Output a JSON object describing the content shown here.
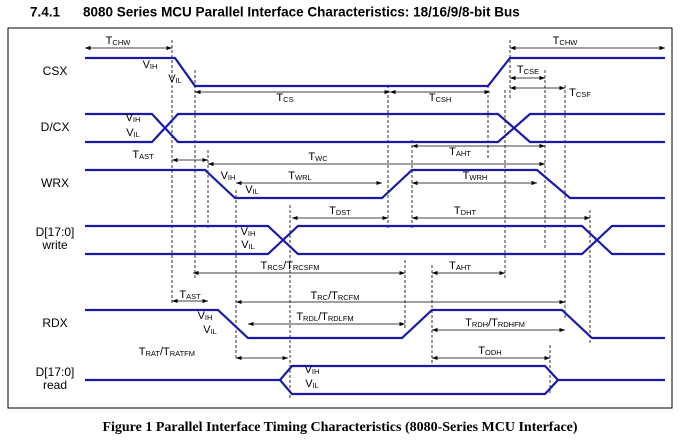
{
  "header": {
    "number": "7.4.1",
    "title": "8080 Series MCU Parallel Interface Characteristics: 18/16/9/8-bit Bus"
  },
  "signals": [
    {
      "lines": [
        "CSX"
      ]
    },
    {
      "lines": [
        "D/CX"
      ]
    },
    {
      "lines": [
        "WRX"
      ]
    },
    {
      "lines": [
        "D[17:0]",
        "write"
      ]
    },
    {
      "lines": [
        "RDX"
      ]
    },
    {
      "lines": [
        "D[17:0]",
        "read"
      ]
    }
  ],
  "timings": [
    {
      "parts": [
        {
          "text": "T"
        },
        {
          "sub": "CHW"
        }
      ]
    },
    {
      "parts": [
        {
          "text": "T"
        },
        {
          "sub": "CHW"
        }
      ]
    },
    {
      "parts": [
        {
          "text": "T"
        },
        {
          "sub": "CS"
        }
      ]
    },
    {
      "parts": [
        {
          "text": "T"
        },
        {
          "sub": "CSH"
        }
      ]
    },
    {
      "parts": [
        {
          "text": "T"
        },
        {
          "sub": "CSE"
        }
      ]
    },
    {
      "parts": [
        {
          "text": "T"
        },
        {
          "sub": "CSF"
        }
      ]
    },
    {
      "parts": [
        {
          "text": "T"
        },
        {
          "sub": "AST"
        }
      ]
    },
    {
      "parts": [
        {
          "text": "T"
        },
        {
          "sub": "WC"
        }
      ]
    },
    {
      "parts": [
        {
          "text": "T"
        },
        {
          "sub": "AHT"
        }
      ]
    },
    {
      "parts": [
        {
          "text": "T"
        },
        {
          "sub": "WRL"
        }
      ]
    },
    {
      "parts": [
        {
          "text": "T"
        },
        {
          "sub": "WRH"
        }
      ]
    },
    {
      "parts": [
        {
          "text": "T"
        },
        {
          "sub": "DST"
        }
      ]
    },
    {
      "parts": [
        {
          "text": "T"
        },
        {
          "sub": "DHT"
        }
      ]
    },
    {
      "parts": [
        {
          "text": "T"
        },
        {
          "sub": "RCS"
        },
        {
          "text": "/T"
        },
        {
          "sub": "RCSFM"
        }
      ]
    },
    {
      "parts": [
        {
          "text": "T"
        },
        {
          "sub": "AHT"
        }
      ]
    },
    {
      "parts": [
        {
          "text": "T"
        },
        {
          "sub": "AST"
        }
      ]
    },
    {
      "parts": [
        {
          "text": "T"
        },
        {
          "sub": "RC"
        },
        {
          "text": "/T"
        },
        {
          "sub": "RCFM"
        }
      ]
    },
    {
      "parts": [
        {
          "text": "T"
        },
        {
          "sub": "RDL"
        },
        {
          "text": "/T"
        },
        {
          "sub": "RDLFM"
        }
      ]
    },
    {
      "parts": [
        {
          "text": "T"
        },
        {
          "sub": "RDH"
        },
        {
          "text": "/T"
        },
        {
          "sub": "RDHFM"
        }
      ]
    },
    {
      "parts": [
        {
          "text": "T"
        },
        {
          "sub": "RAT"
        },
        {
          "text": "/T"
        },
        {
          "sub": "RATFM"
        }
      ]
    },
    {
      "parts": [
        {
          "text": "T"
        },
        {
          "sub": "ODH"
        }
      ]
    }
  ],
  "levels": [
    {
      "parts": [
        {
          "text": "V"
        },
        {
          "sub": "IH"
        }
      ]
    },
    {
      "parts": [
        {
          "text": "V"
        },
        {
          "sub": "IL"
        }
      ]
    },
    {
      "parts": [
        {
          "text": "V"
        },
        {
          "sub": "IH"
        }
      ]
    },
    {
      "parts": [
        {
          "text": "V"
        },
        {
          "sub": "IL"
        }
      ]
    },
    {
      "parts": [
        {
          "text": "V"
        },
        {
          "sub": "IH"
        }
      ]
    },
    {
      "parts": [
        {
          "text": "V"
        },
        {
          "sub": "IL"
        }
      ]
    },
    {
      "parts": [
        {
          "text": "V"
        },
        {
          "sub": "IH"
        }
      ]
    },
    {
      "parts": [
        {
          "text": "V"
        },
        {
          "sub": "IL"
        }
      ]
    },
    {
      "parts": [
        {
          "text": "V"
        },
        {
          "sub": "IH"
        }
      ]
    },
    {
      "parts": [
        {
          "text": "V"
        },
        {
          "sub": "IL"
        }
      ]
    },
    {
      "parts": [
        {
          "text": "V"
        },
        {
          "sub": "IH"
        }
      ]
    },
    {
      "parts": [
        {
          "text": "V"
        },
        {
          "sub": "IL"
        }
      ]
    }
  ],
  "caption": "Figure 1 Parallel Interface Timing Characteristics (8080-Series MCU Interface)"
}
